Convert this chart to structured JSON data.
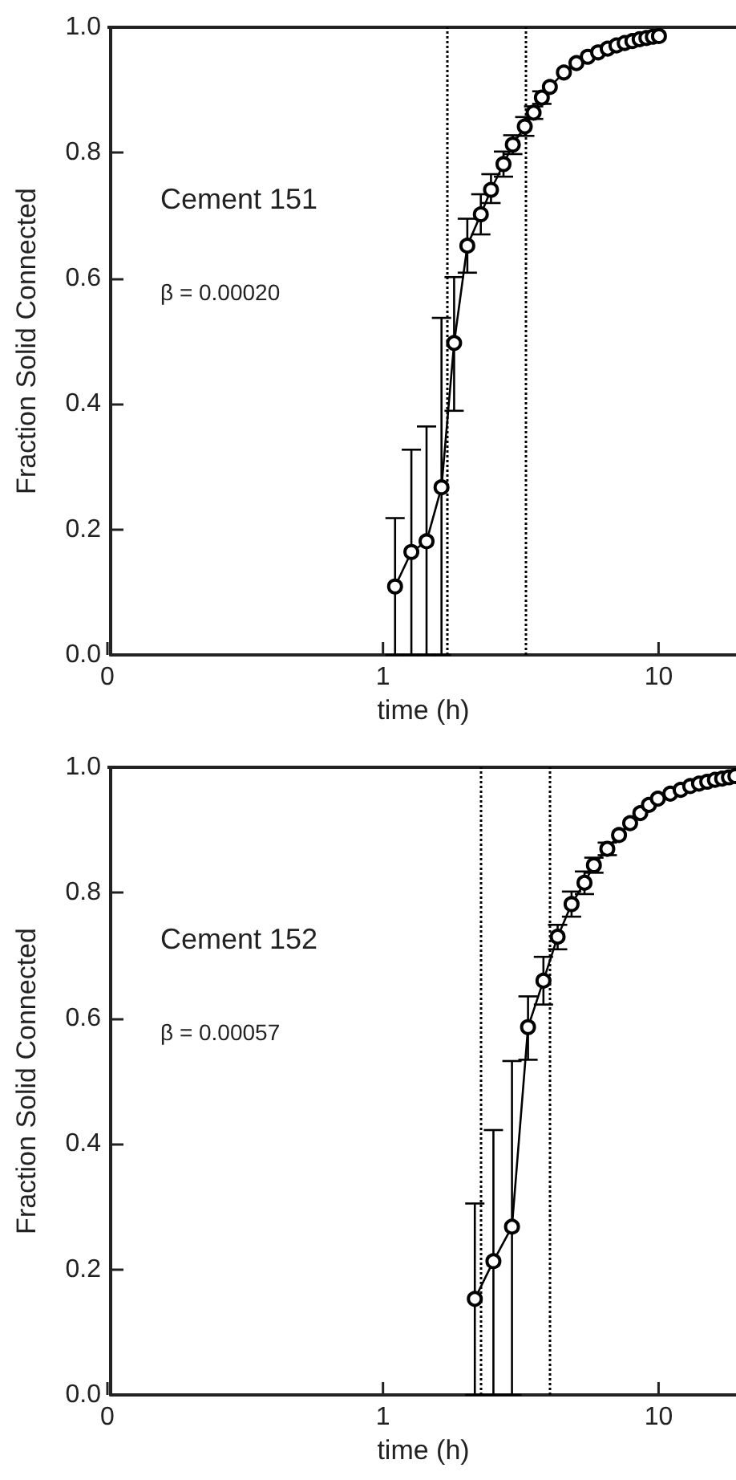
{
  "chart_data": [
    {
      "type": "line",
      "xlabel": "time (h)",
      "ylabel": "Fraction Solid Connected",
      "annotations": [
        "Cement 151",
        "β = 0.00020"
      ],
      "log": "x",
      "grid": false,
      "marker": "circle",
      "line_style": "solid",
      "xlim": [
        0.1,
        19.1
      ],
      "xticks": [
        {
          "value": 0.1,
          "label": "0"
        },
        {
          "value": 1,
          "label": "1"
        },
        {
          "value": 10,
          "label": "10"
        }
      ],
      "ylim": [
        0,
        1
      ],
      "yticks": [
        {
          "value": 0,
          "label": "0.0"
        },
        {
          "value": 0.2,
          "label": "0.2"
        },
        {
          "value": 0.4,
          "label": "0.4"
        },
        {
          "value": 0.6,
          "label": "0.6"
        },
        {
          "value": 0.8,
          "label": "0.8"
        },
        {
          "value": 1,
          "label": "1.0"
        }
      ],
      "ref_lines": [
        {
          "axis": "x",
          "value": 1.68,
          "color": "#000000",
          "line_style": "dotted"
        },
        {
          "axis": "x",
          "value": 3.25,
          "color": "#000000",
          "line_style": "dotted"
        }
      ],
      "series": [
        {
          "color": "#000000",
          "x": [
            1.09,
            1.25,
            1.42,
            1.61,
            1.79,
            2.0,
            2.24,
            2.44,
            2.71,
            2.93,
            3.24,
            3.49,
            3.74,
            4.0,
            4.5,
            5.0,
            5.5,
            6.0,
            6.5,
            7.0,
            7.5,
            8.0,
            8.5,
            9.0,
            9.5,
            10.0
          ],
          "values": [
            0.109,
            0.164,
            0.181,
            0.267,
            0.497,
            0.652,
            0.702,
            0.741,
            0.782,
            0.813,
            0.842,
            0.864,
            0.888,
            0.905,
            0.928,
            0.943,
            0.953,
            0.96,
            0.966,
            0.971,
            0.975,
            0.978,
            0.981,
            0.983,
            0.985,
            0.986
          ],
          "errors": [
            [
              0,
              0.218
            ],
            [
              0,
              0.327
            ],
            [
              0,
              0.364
            ],
            [
              0,
              0.537
            ],
            [
              0.389,
              0.602
            ],
            [
              0.609,
              0.695
            ],
            [
              0.67,
              0.734
            ],
            [
              0.72,
              0.766
            ],
            0.02,
            0.015,
            0.015,
            0.01,
            0.01,
            null,
            null,
            null,
            null,
            null,
            null,
            null,
            null,
            null,
            null,
            null,
            null,
            null
          ]
        }
      ]
    },
    {
      "type": "line",
      "xlabel": "time (h)",
      "ylabel": "Fraction Solid Connected",
      "annotations": [
        "Cement 152",
        "β = 0.00057"
      ],
      "log": "x",
      "grid": false,
      "marker": "circle",
      "line_style": "solid",
      "xlim": [
        0.1,
        19.1
      ],
      "xticks": [
        {
          "value": 0.1,
          "label": "0"
        },
        {
          "value": 1,
          "label": "1"
        },
        {
          "value": 10,
          "label": "10"
        }
      ],
      "ylim": [
        0,
        1
      ],
      "yticks": [
        {
          "value": 0,
          "label": "0.0"
        },
        {
          "value": 0.2,
          "label": "0.2"
        },
        {
          "value": 0.4,
          "label": "0.4"
        },
        {
          "value": 0.6,
          "label": "0.6"
        },
        {
          "value": 0.8,
          "label": "0.8"
        },
        {
          "value": 1,
          "label": "1.0"
        }
      ],
      "ref_lines": [
        {
          "axis": "x",
          "value": 2.23,
          "color": "#000000",
          "line_style": "dotted"
        },
        {
          "axis": "x",
          "value": 3.98,
          "color": "#000000",
          "line_style": "dotted"
        }
      ],
      "series": [
        {
          "color": "#000000",
          "x": [
            2.13,
            2.49,
            2.91,
            3.33,
            3.79,
            4.27,
            4.8,
            5.35,
            5.79,
            6.48,
            7.15,
            7.85,
            8.55,
            9.19,
            9.91,
            11,
            12,
            13,
            14,
            15,
            16,
            17,
            18,
            19
          ],
          "values": [
            0.153,
            0.213,
            0.268,
            0.586,
            0.66,
            0.73,
            0.782,
            0.816,
            0.844,
            0.87,
            0.892,
            0.911,
            0.927,
            0.94,
            0.95,
            0.958,
            0.964,
            0.97,
            0.974,
            0.977,
            0.98,
            0.982,
            0.984,
            0.986
          ],
          "errors": [
            [
              0,
              0.305
            ],
            [
              0,
              0.422
            ],
            [
              0,
              0.532
            ],
            [
              0.534,
              0.635
            ],
            [
              0.622,
              0.698
            ],
            [
              0.71,
              0.749
            ],
            0.02,
            0.018,
            0.012,
            0.01,
            null,
            null,
            null,
            null,
            null,
            null,
            null,
            null,
            null,
            null,
            null,
            null,
            null,
            null
          ]
        }
      ]
    }
  ]
}
